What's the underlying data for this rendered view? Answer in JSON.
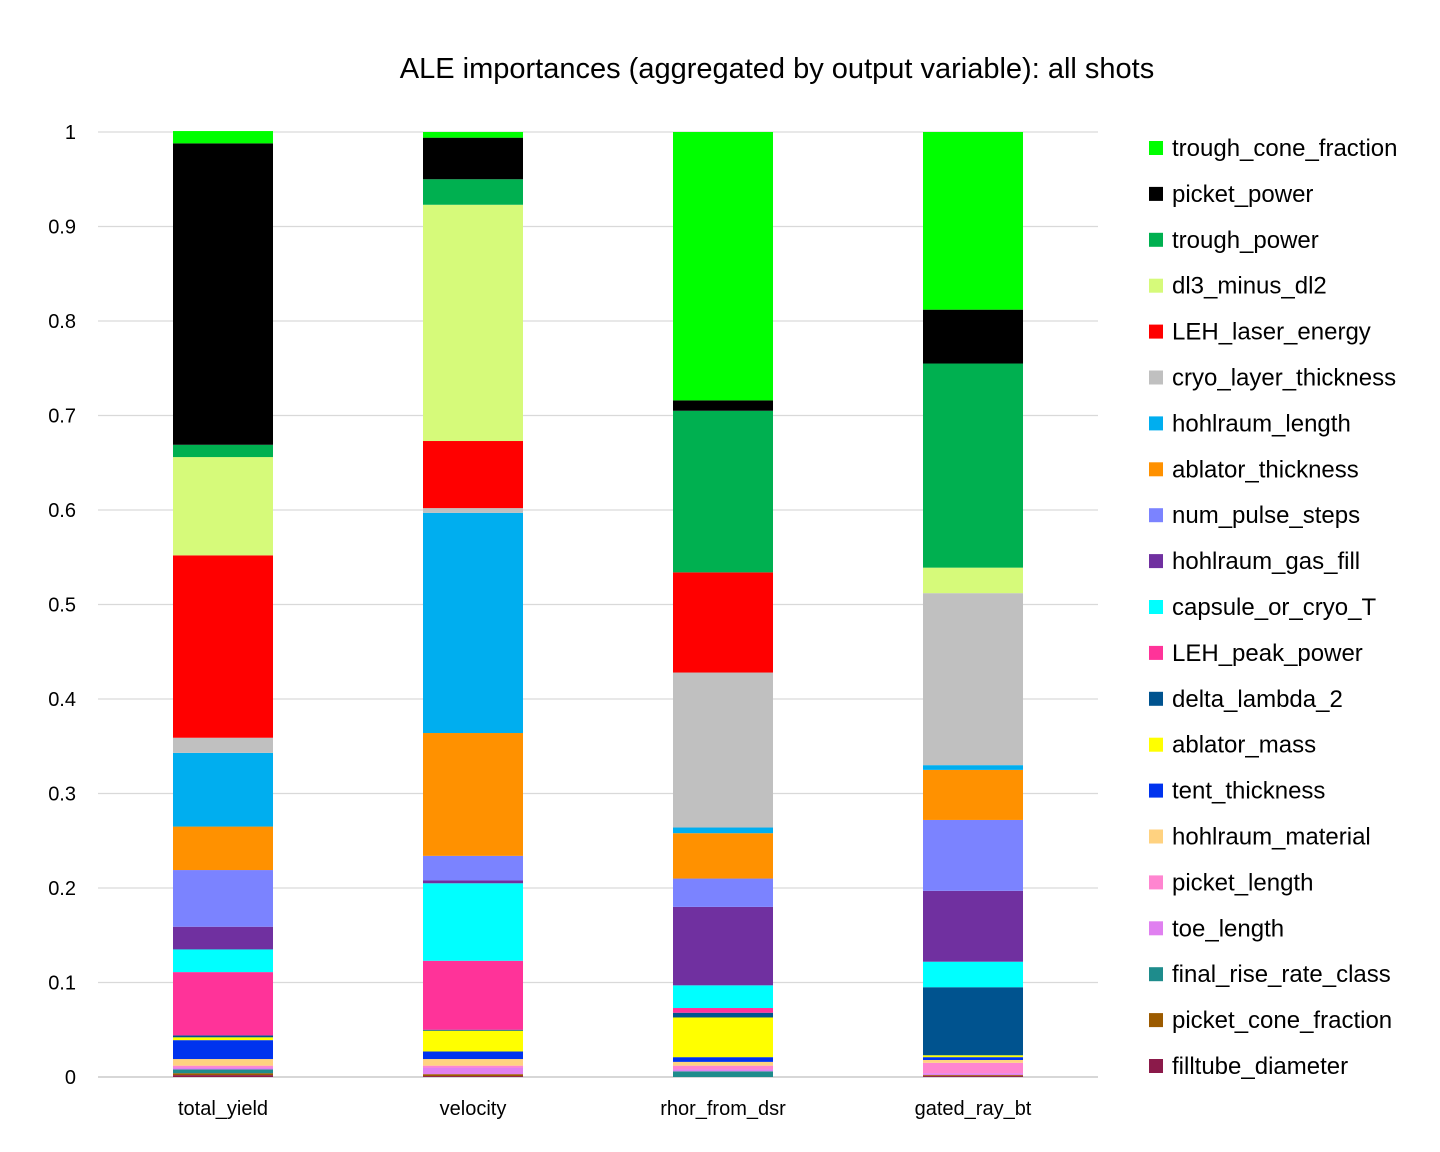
{
  "chart_data": {
    "type": "bar",
    "stacked": true,
    "title": "ALE importances (aggregated by output variable): all shots",
    "xlabel": "",
    "ylabel": "",
    "ylim": [
      0,
      1
    ],
    "yticks": [
      "0",
      "0.1",
      "0.2",
      "0.3",
      "0.4",
      "0.5",
      "0.6",
      "0.7",
      "0.8",
      "0.9",
      "1"
    ],
    "grid": true,
    "legend_position": "right",
    "categories": [
      "total_yield",
      "velocity",
      "rhor_from_dsr",
      "gated_ray_bt"
    ],
    "series": [
      {
        "name": "filltube_diameter",
        "color": "#8B1A4A",
        "values": [
          0.002,
          0.001,
          0.0,
          0.001
        ]
      },
      {
        "name": "picket_cone_fraction",
        "color": "#9C5B00",
        "values": [
          0.002,
          0.002,
          0.0,
          0.001
        ]
      },
      {
        "name": "final_rise_rate_class",
        "color": "#1E8C8C",
        "values": [
          0.004,
          0.0,
          0.006,
          0.0
        ]
      },
      {
        "name": "toe_length",
        "color": "#E080F0",
        "values": [
          0.002,
          0.007,
          0.002,
          0.002
        ]
      },
      {
        "name": "picket_length",
        "color": "#FF85D0",
        "values": [
          0.002,
          0.002,
          0.004,
          0.011
        ]
      },
      {
        "name": "hohlraum_material",
        "color": "#FFD280",
        "values": [
          0.007,
          0.007,
          0.004,
          0.003
        ]
      },
      {
        "name": "tent_thickness",
        "color": "#0033EE",
        "values": [
          0.02,
          0.008,
          0.005,
          0.003
        ]
      },
      {
        "name": "ablator_mass",
        "color": "#FFFF00",
        "values": [
          0.003,
          0.022,
          0.042,
          0.002
        ]
      },
      {
        "name": "delta_lambda_2",
        "color": "#00538F",
        "values": [
          0.002,
          0.001,
          0.005,
          0.072
        ]
      },
      {
        "name": "LEH_peak_power",
        "color": "#FF3399",
        "values": [
          0.067,
          0.073,
          0.005,
          0.0
        ]
      },
      {
        "name": "capsule_or_cryo_T",
        "color": "#00FFFF",
        "values": [
          0.024,
          0.082,
          0.024,
          0.027
        ]
      },
      {
        "name": "hohlraum_gas_fill",
        "color": "#7030A0",
        "values": [
          0.024,
          0.003,
          0.083,
          0.075
        ]
      },
      {
        "name": "num_pulse_steps",
        "color": "#7B83FF",
        "values": [
          0.06,
          0.026,
          0.03,
          0.075
        ]
      },
      {
        "name": "ablator_thickness",
        "color": "#FF9100",
        "values": [
          0.046,
          0.13,
          0.048,
          0.053
        ]
      },
      {
        "name": "hohlraum_length",
        "color": "#00AEEF",
        "values": [
          0.078,
          0.233,
          0.006,
          0.005
        ]
      },
      {
        "name": "cryo_layer_thickness",
        "color": "#C0C0C0",
        "values": [
          0.016,
          0.005,
          0.164,
          0.182
        ]
      },
      {
        "name": "LEH_laser_energy",
        "color": "#FF0000",
        "values": [
          0.193,
          0.071,
          0.106,
          0.0
        ]
      },
      {
        "name": "dl3_minus_dl2",
        "color": "#D6FA7A",
        "values": [
          0.104,
          0.25,
          0.0,
          0.027
        ]
      },
      {
        "name": "trough_power",
        "color": "#00B050",
        "values": [
          0.013,
          0.027,
          0.171,
          0.216
        ]
      },
      {
        "name": "picket_power",
        "color": "#000000",
        "values": [
          0.319,
          0.044,
          0.011,
          0.057
        ]
      },
      {
        "name": "trough_cone_fraction",
        "color": "#00FF00",
        "values": [
          0.013,
          0.006,
          0.284,
          0.188
        ]
      }
    ]
  }
}
